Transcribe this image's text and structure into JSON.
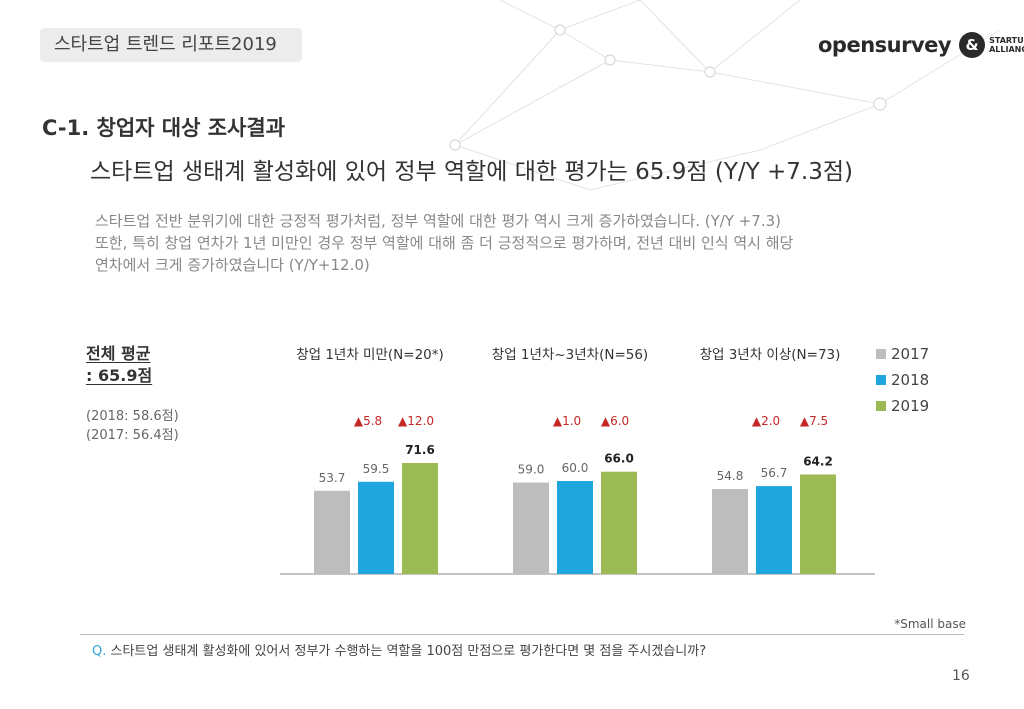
{
  "header": {
    "tag": "스타트업 트렌드 리포트2019"
  },
  "logo": {
    "brand": "opensurvey",
    "partner_line1": "STARTUP",
    "partner_line2": "ALLIANCE"
  },
  "section": {
    "title": "C-1. 창업자 대상 조사결과"
  },
  "headline": "스타트업 생태계 활성화에 있어 정부 역할에 대한 평가는 65.9점 (Y/Y +7.3점)",
  "description": {
    "line1": "스타트업 전반 분위기에 대한 긍정적 평가처럼, 정부 역할에 대한 평가 역시 크게 증가하였습니다. (Y/Y +7.3)",
    "line2": "또한, 특히 창업 연차가 1년 미만인 경우 정부 역할에 대해 좀 더 긍정적으로 평가하며, 전년 대비 인식 역시 해당",
    "line3": "연차에서 크게 증가하였습니다 (Y/Y+12.0)"
  },
  "average": {
    "label": "전체 평균",
    "value": ": 65.9점",
    "prev_2018": "(2018: 58.6점)",
    "prev_2017": "(2017: 56.4점)"
  },
  "colors": {
    "2017": "#bdbdbd",
    "2018": "#1ea6dd",
    "2019": "#9cba54",
    "up": "#c62828",
    "axis": "#888888"
  },
  "chart_data": {
    "type": "bar",
    "categories": [
      "창업 1년차 미만(N=20*)",
      "창업 1년차~3년차(N=56)",
      "창업 3년차 이상(N=73)"
    ],
    "series": [
      {
        "name": "2017",
        "values": [
          53.7,
          59.0,
          54.8
        ]
      },
      {
        "name": "2018",
        "values": [
          59.5,
          60.0,
          56.7
        ]
      },
      {
        "name": "2019",
        "values": [
          71.6,
          66.0,
          64.2
        ]
      }
    ],
    "changes": [
      {
        "vs2017": "▲5.8",
        "vs2018": "▲12.0"
      },
      {
        "vs2017": "▲1.0",
        "vs2018": "▲6.0"
      },
      {
        "vs2017": "▲2.0",
        "vs2018": "▲7.5"
      }
    ],
    "title": "",
    "xlabel": "",
    "ylabel": "",
    "ylim": [
      0,
      100
    ]
  },
  "footnote": "*Small base",
  "question": {
    "prefix": "Q.",
    "text": "스타트업 생태계 활성화에 있어서 정부가 수행하는 역할을 100점 만점으로 평가한다면 몇 점을 주시겠습니까?"
  },
  "page_number": "16"
}
